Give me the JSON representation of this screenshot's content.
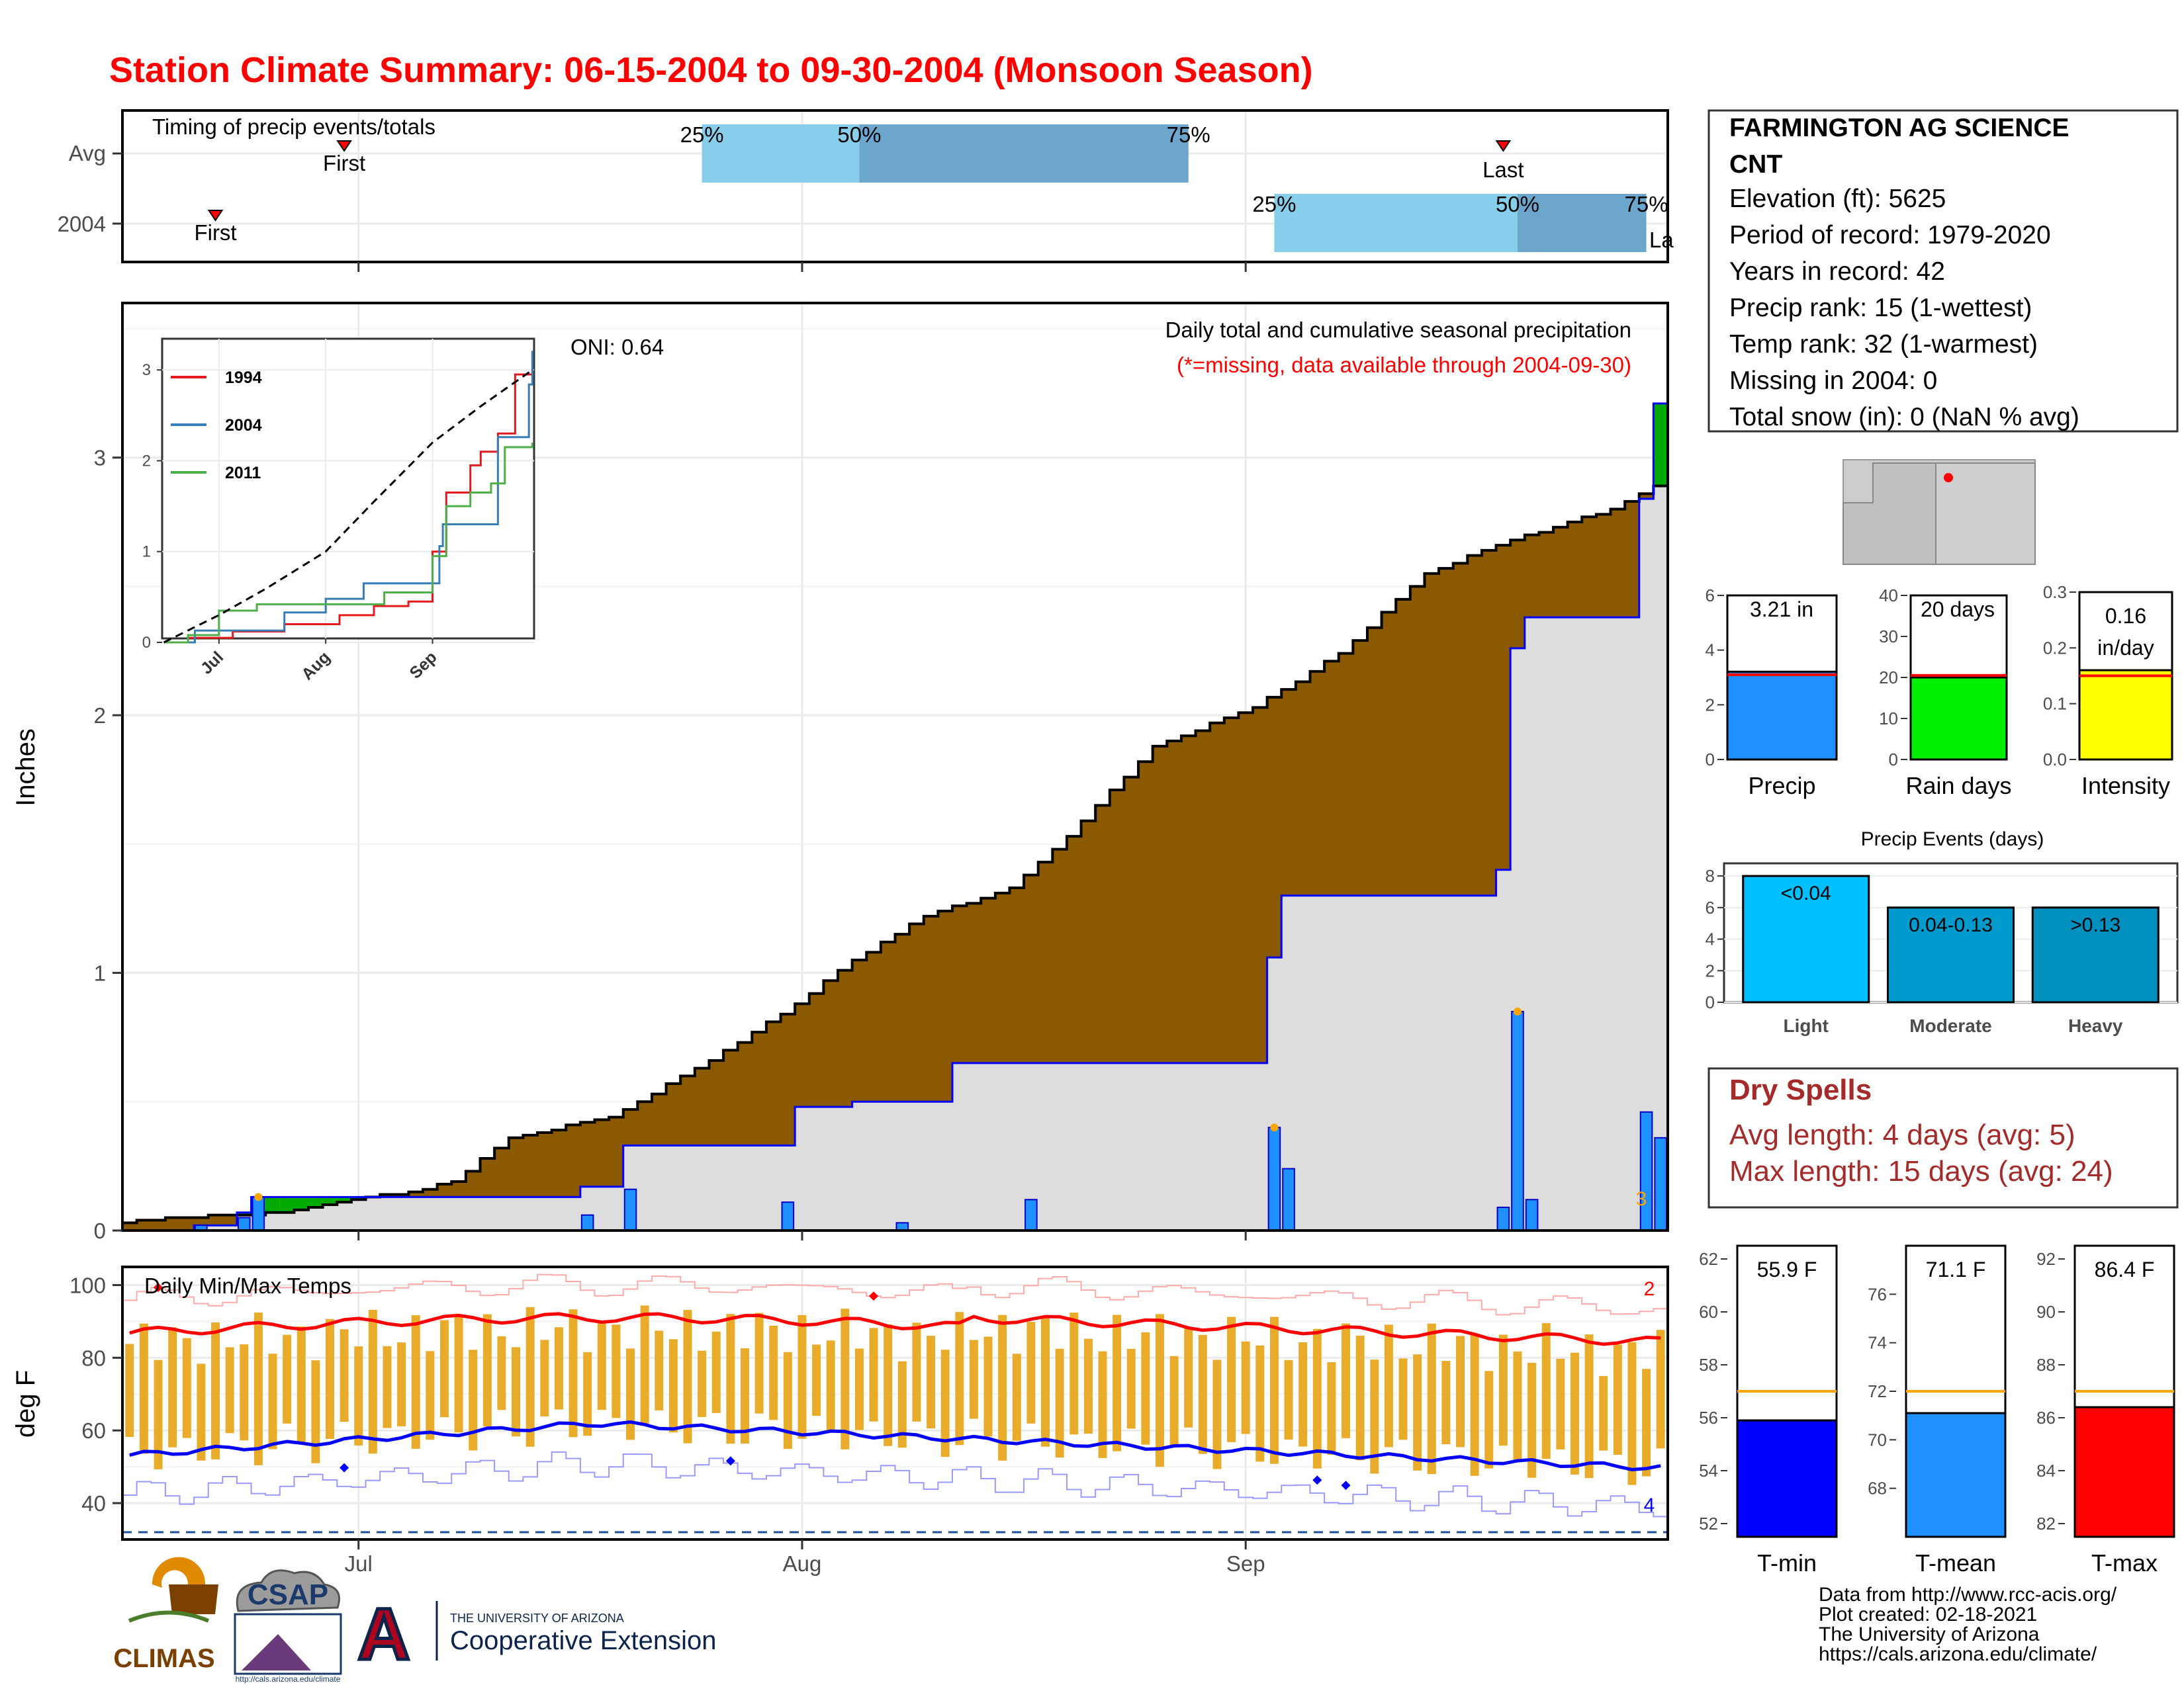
{
  "title": "Station Climate Summary: 06-15-2004 to 09-30-2004 (Monsoon Season)",
  "colors": {
    "title": "#ff0000",
    "normal": "#8b5a00",
    "observed": "#dddddd",
    "daily_bar": "#1e90ff",
    "timing_light": "#87ceeb",
    "timing_dark": "#6ca6cd",
    "max_temp": "#ff0000",
    "min_temp": "#0000ff",
    "temp_bar": "#e8ac2a",
    "record_max": "#ffaaaa",
    "record_min": "#9999ff"
  },
  "station": {
    "name_line1": "FARMINGTON AG SCIENCE",
    "name_line2": "CNT",
    "elevation": "Elevation (ft): 5625",
    "period": "Period of record: 1979-2020",
    "years": "Years in record: 42",
    "precip_rank": "Precip rank: 15 (1-wettest)",
    "temp_rank": "Temp rank: 32 (1-warmest)",
    "missing": "Missing in 2004: 0",
    "snow": "Total snow (in): 0 (NaN % avg)"
  },
  "locator_map": {
    "description_icon": "arizona-new-mexico-map"
  },
  "timing_panel": {
    "label": "Timing of precip events/totals",
    "rows": [
      "Avg",
      "2004"
    ],
    "first_label": "First",
    "last_label": "Last",
    "pct_labels": [
      "25%",
      "50%",
      "75%"
    ],
    "clip_label_last": "La",
    "chart_data": {
      "type": "bar",
      "avg": {
        "first": "2004-06-30",
        "q25": "2004-07-25",
        "q50": "2004-08-05",
        "q75": "2004-08-28",
        "last": "2004-09-19"
      },
      "y2004": {
        "first": "2004-06-21",
        "q25": "2004-09-03",
        "q50": "2004-09-20",
        "q75": "2004-09-29",
        "last": "2004-09-30"
      }
    }
  },
  "precip_panel": {
    "ylabel": "Inches",
    "oni": "ONI: 0.64",
    "subtitle1": "Daily total and cumulative seasonal precipitation",
    "subtitle2": "(*=missing, data available through 2004-09-30)",
    "count_label": "3",
    "yticks": [
      "0",
      "1",
      "2",
      "3"
    ],
    "chart_data": {
      "type": "area",
      "start_date": "2004-06-15",
      "ylim": [
        0,
        3.6
      ],
      "normal_cumulative_breaks": [
        [
          "2004-06-15",
          0.03
        ],
        [
          "2004-06-19",
          0.05
        ],
        [
          "2004-06-26",
          0.07
        ],
        [
          "2004-07-01",
          0.12
        ],
        [
          "2004-07-05",
          0.15
        ],
        [
          "2004-07-08",
          0.19
        ],
        [
          "2004-07-12",
          0.36
        ],
        [
          "2004-07-19",
          0.44
        ],
        [
          "2004-07-26",
          0.66
        ],
        [
          "2004-08-01",
          0.88
        ],
        [
          "2004-08-05",
          1.05
        ],
        [
          "2004-08-10",
          1.22
        ],
        [
          "2004-08-16",
          1.33
        ],
        [
          "2004-08-20",
          1.53
        ],
        [
          "2004-08-26",
          1.88
        ],
        [
          "2004-09-02",
          2.03
        ],
        [
          "2004-09-08",
          2.24
        ],
        [
          "2004-09-14",
          2.55
        ],
        [
          "2004-09-20",
          2.68
        ],
        [
          "2004-09-27",
          2.8
        ],
        [
          "2004-09-30",
          2.89
        ]
      ],
      "observed_cumulative_breaks": [
        [
          "2004-06-15",
          0.0
        ],
        [
          "2004-06-20",
          0.02
        ],
        [
          "2004-06-23",
          0.07
        ],
        [
          "2004-06-24",
          0.13
        ],
        [
          "2004-07-01",
          0.13
        ],
        [
          "2004-07-17",
          0.17
        ],
        [
          "2004-07-20",
          0.33
        ],
        [
          "2004-08-01",
          0.48
        ],
        [
          "2004-08-05",
          0.5
        ],
        [
          "2004-08-12",
          0.65
        ],
        [
          "2004-09-03",
          1.06
        ],
        [
          "2004-09-04",
          1.3
        ],
        [
          "2004-09-19",
          1.4
        ],
        [
          "2004-09-20",
          2.26
        ],
        [
          "2004-09-21",
          2.38
        ],
        [
          "2004-09-29",
          2.84
        ],
        [
          "2004-09-30",
          3.21
        ]
      ],
      "daily_bars": [
        [
          "2004-06-20",
          0.02
        ],
        [
          "2004-06-23",
          0.05
        ],
        [
          "2004-06-24",
          0.13
        ],
        [
          "2004-07-17",
          0.06
        ],
        [
          "2004-07-20",
          0.16
        ],
        [
          "2004-07-31",
          0.11
        ],
        [
          "2004-08-08",
          0.03
        ],
        [
          "2004-08-17",
          0.12
        ],
        [
          "2004-09-03",
          0.4
        ],
        [
          "2004-09-04",
          0.24
        ],
        [
          "2004-09-19",
          0.09
        ],
        [
          "2004-09-20",
          0.85
        ],
        [
          "2004-09-21",
          0.12
        ],
        [
          "2004-09-29",
          0.46
        ],
        [
          "2004-09-30",
          0.36
        ]
      ],
      "highlight_dates": [
        "2004-06-24",
        "2004-09-03",
        "2004-09-20"
      ]
    }
  },
  "inset": {
    "legend": [
      {
        "name": "1994",
        "color": "#e41a1c"
      },
      {
        "name": "2004",
        "color": "#377eb8"
      },
      {
        "name": "2011",
        "color": "#4daf4a"
      }
    ],
    "xticks": [
      "Jul",
      "Aug",
      "Sep"
    ],
    "yticks": [
      "0",
      "1",
      "2",
      "3"
    ],
    "chart_data": {
      "type": "line",
      "ylim": [
        0,
        3.3
      ],
      "series": [
        {
          "name": "1994",
          "points": [
            [
              "2004-06-15",
              0
            ],
            [
              "2004-06-22",
              0.05
            ],
            [
              "2004-07-05",
              0.12
            ],
            [
              "2004-07-20",
              0.2
            ],
            [
              "2004-08-05",
              0.3
            ],
            [
              "2004-08-15",
              0.4
            ],
            [
              "2004-08-25",
              0.45
            ],
            [
              "2004-09-01",
              1.0
            ],
            [
              "2004-09-05",
              1.65
            ],
            [
              "2004-09-12",
              1.95
            ],
            [
              "2004-09-15",
              2.1
            ],
            [
              "2004-09-20",
              2.3
            ],
            [
              "2004-09-25",
              2.95
            ],
            [
              "2004-09-30",
              3.21
            ]
          ]
        },
        {
          "name": "2004",
          "points": [
            [
              "2004-06-15",
              0
            ],
            [
              "2004-06-24",
              0.13
            ],
            [
              "2004-07-20",
              0.33
            ],
            [
              "2004-08-01",
              0.48
            ],
            [
              "2004-08-12",
              0.65
            ],
            [
              "2004-09-03",
              1.06
            ],
            [
              "2004-09-04",
              1.3
            ],
            [
              "2004-09-20",
              2.26
            ],
            [
              "2004-09-29",
              2.84
            ],
            [
              "2004-09-30",
              3.21
            ]
          ]
        },
        {
          "name": "2011",
          "points": [
            [
              "2004-06-15",
              0
            ],
            [
              "2004-06-22",
              0.08
            ],
            [
              "2004-07-01",
              0.35
            ],
            [
              "2004-07-12",
              0.42
            ],
            [
              "2004-08-05",
              0.42
            ],
            [
              "2004-08-18",
              0.55
            ],
            [
              "2004-09-01",
              0.95
            ],
            [
              "2004-09-05",
              1.5
            ],
            [
              "2004-09-12",
              1.65
            ],
            [
              "2004-09-18",
              1.75
            ],
            [
              "2004-09-22",
              2.15
            ],
            [
              "2004-09-30",
              2.2
            ]
          ]
        },
        {
          "name": "average",
          "points": [
            [
              "2004-06-15",
              0
            ],
            [
              "2004-07-01",
              0.3
            ],
            [
              "2004-07-15",
              0.6
            ],
            [
              "2004-08-01",
              1.0
            ],
            [
              "2004-08-15",
              1.55
            ],
            [
              "2004-09-01",
              2.2
            ],
            [
              "2004-09-15",
              2.6
            ],
            [
              "2004-09-30",
              3.0
            ]
          ]
        }
      ]
    }
  },
  "temp_panel": {
    "label": "Daily Min/Max Temps",
    "ylabel": "deg F",
    "yticks": [
      "40",
      "60",
      "80",
      "100"
    ],
    "count_max": "2",
    "count_min": "4",
    "chart_data": {
      "type": "line",
      "ylim": [
        30,
        105
      ],
      "avg_max_range": [
        84,
        91
      ],
      "avg_min_range": [
        46,
        62
      ],
      "freeze_line": 32,
      "record_max_dates": [
        "2004-06-17",
        "2004-08-06"
      ],
      "record_min_dates": [
        "2004-06-30",
        "2004-07-27",
        "2004-09-06",
        "2004-09-08"
      ]
    }
  },
  "xaxis": {
    "ticks": [
      "Jul",
      "Aug",
      "Sep"
    ]
  },
  "summary_bars": {
    "precip": {
      "label": "Precip",
      "value": 3.21,
      "avg": 3.1,
      "text": "3.21 in",
      "ylim": [
        0,
        6
      ],
      "yticks": [
        "0",
        "2",
        "4",
        "6"
      ],
      "color": "#1e90ff"
    },
    "raindays": {
      "label": "Rain days",
      "value": 20,
      "avg": 20.5,
      "text": "20 days",
      "ylim": [
        0,
        40
      ],
      "yticks": [
        "0",
        "10",
        "20",
        "30",
        "40"
      ],
      "color": "#00ee00"
    },
    "intensity": {
      "label": "Intensity",
      "value": 0.16,
      "avg": 0.15,
      "text_line1": "0.16",
      "text_line2": "in/day",
      "ylim": [
        0,
        0.3
      ],
      "yticks": [
        "0.0",
        "0.1",
        "0.2",
        "0.3"
      ],
      "color": "#ffff00"
    }
  },
  "events": {
    "title": "Precip Events (days)",
    "yticks": [
      "0",
      "2",
      "4",
      "6",
      "8"
    ],
    "bars": [
      {
        "label": "Light",
        "value": 8,
        "text": "<0.04",
        "color": "#00bfff"
      },
      {
        "label": "Moderate",
        "value": 6,
        "text": "0.04-0.13",
        "color": "#009acd"
      },
      {
        "label": "Heavy",
        "value": 6,
        "text": ">0.13",
        "color": "#0090c0"
      }
    ]
  },
  "dry_spells": {
    "title": "Dry Spells",
    "avg": "Avg length: 4 days (avg: 5)",
    "max": "Max length: 15 days (avg: 24)",
    "color": "#a52a2a"
  },
  "temp_summary": {
    "tmin": {
      "label": "T-min",
      "value": 55.9,
      "avg": 57.0,
      "text": "55.9 F",
      "ylim": [
        51.5,
        62.5
      ],
      "yticks": [
        "52",
        "54",
        "56",
        "58",
        "60",
        "62"
      ],
      "color": "#0000ff"
    },
    "tmean": {
      "label": "T-mean",
      "value": 71.1,
      "avg": 72.0,
      "text": "71.1 F",
      "ylim": [
        66,
        78
      ],
      "yticks": [
        "68",
        "70",
        "72",
        "74",
        "76"
      ],
      "color": "#1e90ff"
    },
    "tmax": {
      "label": "T-max",
      "value": 86.4,
      "avg": 87.0,
      "text": "86.4 F",
      "ylim": [
        81.5,
        92.5
      ],
      "yticks": [
        "82",
        "84",
        "86",
        "88",
        "90",
        "92"
      ],
      "color": "#ff0000"
    },
    "avg_line_color": "#ffa500"
  },
  "credits": {
    "line1": "Data from http://www.rcc-acis.org/",
    "line2": "Plot created: 02-18-2021",
    "line3": "The University of Arizona",
    "line4": "https://cals.arizona.edu/climate/"
  },
  "logos": {
    "climas": "CLIMAS",
    "csap": "CSAP",
    "csap_url": "http://cals.arizona.edu/climate",
    "ua_small": "THE UNIVERSITY OF ARIZONA",
    "ua_big": "Cooperative Extension",
    "ua_letter": "A"
  }
}
